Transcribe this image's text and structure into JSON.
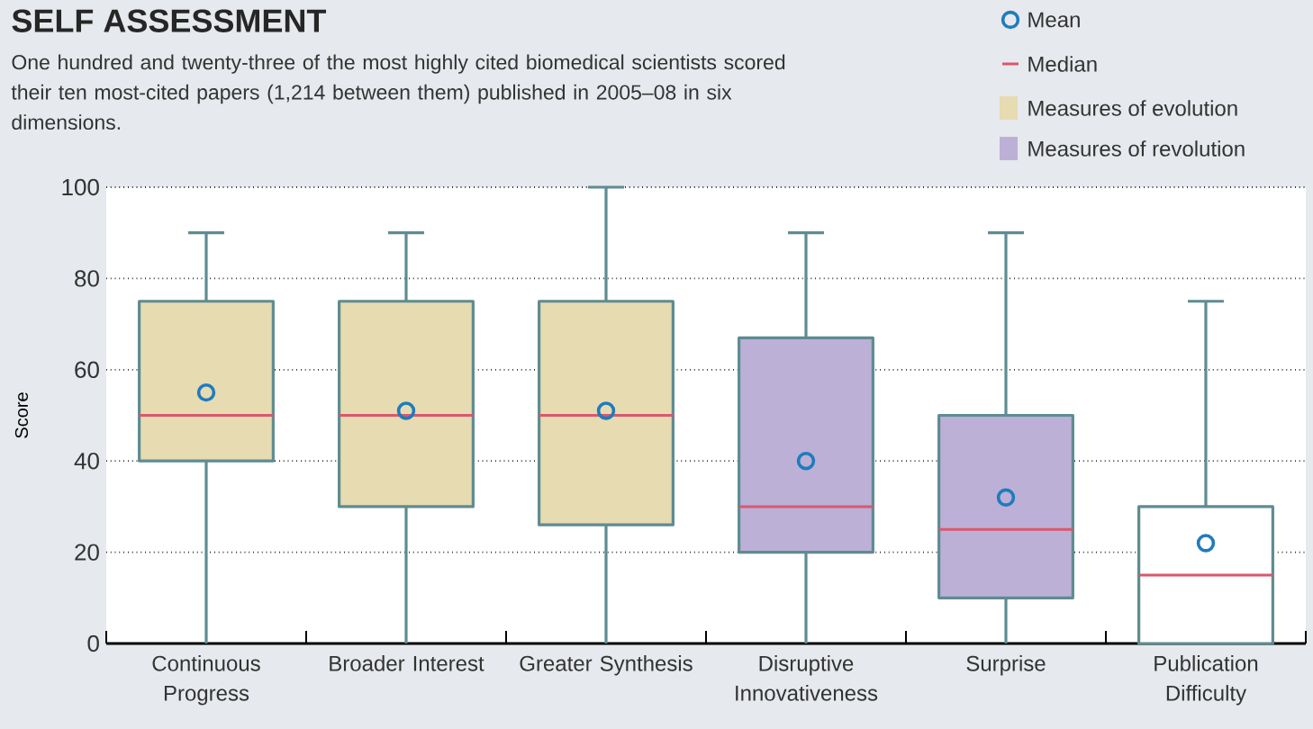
{
  "chart_data": {
    "type": "box",
    "title": "SELF ASSESSMENT",
    "subtitle": "One hundred and twenty-three of the most highly cited biomedical scientists scored their ten most-cited papers (1,214 between them) published in 2005–08 in six dimensions.",
    "ylabel": "Score",
    "categories": [
      "Continuous Progress",
      "Broader Interest",
      "Greater Synthesis",
      "Disruptive Innovativeness",
      "Surprise",
      "Publication Difficulty"
    ],
    "series": [
      {
        "name": "Measures of evolution",
        "color": "#e6dbb1",
        "boxes": [
          {
            "low": 0,
            "q1": 40,
            "median": 50,
            "q3": 75,
            "high": 90
          },
          {
            "low": 0,
            "q1": 30,
            "median": 50,
            "q3": 75,
            "high": 90
          },
          {
            "low": 0,
            "q1": 26,
            "median": 50,
            "q3": 75,
            "high": 100
          },
          null,
          null,
          null
        ]
      },
      {
        "name": "Measures of revolution",
        "color": "#bcb0d7",
        "boxes": [
          null,
          null,
          null,
          {
            "low": 0,
            "q1": 20,
            "median": 30,
            "q3": 67,
            "high": 90
          },
          {
            "low": 0,
            "q1": 10,
            "median": 25,
            "q3": 50,
            "high": 90
          },
          null
        ]
      },
      {
        "color": "#ffffff",
        "boxes": [
          null,
          null,
          null,
          null,
          null,
          {
            "low": 0,
            "q1": 0,
            "median": 15,
            "q3": 30,
            "high": 75
          }
        ]
      },
      {
        "type": "scatter",
        "name": "Mean",
        "color": "#1f7bbd",
        "x": [
          "Continuous Progress",
          "Broader Interest",
          "Greater Synthesis",
          "Disruptive Innovativeness",
          "Surprise",
          "Publication Difficulty"
        ],
        "values": [
          55,
          51,
          51,
          40,
          32,
          22
        ]
      }
    ],
    "annotations": [
      "Median"
    ],
    "ylim": [
      0,
      100
    ],
    "yticks": [
      0,
      20,
      40,
      60,
      80,
      100
    ],
    "grid": "y",
    "legend": "top right",
    "marker": "circle"
  }
}
